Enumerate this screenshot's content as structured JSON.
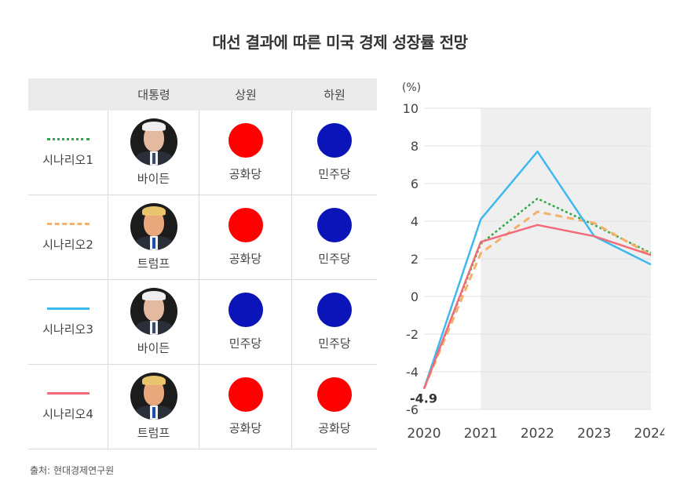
{
  "title": "대선 결과에 따른 미국 경제 성장률 전망",
  "table": {
    "headers": [
      "대통령",
      "상원",
      "하원"
    ],
    "rows": [
      {
        "scenario": "시나리오1",
        "line_style": "dotted",
        "line_color": "#2ea84a",
        "president": "바이든",
        "president_icon": "biden-portrait-icon",
        "senate": "공화당",
        "senate_color": "#ff0000",
        "house": "민주당",
        "house_color": "#0a14b8"
      },
      {
        "scenario": "시나리오2",
        "line_style": "dashed",
        "line_color": "#f5b06a",
        "president": "트럼프",
        "president_icon": "trump-portrait-icon",
        "senate": "공화당",
        "senate_color": "#ff0000",
        "house": "민주당",
        "house_color": "#0a14b8"
      },
      {
        "scenario": "시나리오3",
        "line_style": "solid",
        "line_color": "#3db9f0",
        "president": "바이든",
        "president_icon": "biden-portrait-icon",
        "senate": "민주당",
        "senate_color": "#0a14b8",
        "house": "민주당",
        "house_color": "#0a14b8"
      },
      {
        "scenario": "시나리오4",
        "line_style": "solid",
        "line_color": "#f26b7a",
        "president": "트럼프",
        "president_icon": "trump-portrait-icon",
        "senate": "공화당",
        "senate_color": "#ff0000",
        "house": "공화당",
        "house_color": "#ff0000"
      }
    ]
  },
  "source": "출처: 현대경제연구원",
  "chart_data": {
    "type": "line",
    "x": [
      2020,
      2021,
      2022,
      2023,
      2024
    ],
    "ylim": [
      -6,
      10
    ],
    "yticks": [
      -6,
      -4,
      -2,
      0,
      2,
      4,
      6,
      8,
      10
    ],
    "ylabel": "(%)",
    "grid": true,
    "shaded_from_x": 2021,
    "annotation": "-4.9",
    "series": [
      {
        "name": "시나리오1",
        "style": "dotted",
        "color": "#2ea84a",
        "values": [
          -4.9,
          2.8,
          5.2,
          3.8,
          2.3
        ]
      },
      {
        "name": "시나리오2",
        "style": "dashed",
        "color": "#f5b06a",
        "values": [
          -4.9,
          2.3,
          4.5,
          3.9,
          2.2
        ]
      },
      {
        "name": "시나리오3",
        "style": "solid",
        "color": "#3db9f0",
        "values": [
          -4.9,
          4.1,
          7.7,
          3.2,
          1.7
        ]
      },
      {
        "name": "시나리오4",
        "style": "solid",
        "color": "#f26b7a",
        "values": [
          -4.9,
          2.9,
          3.8,
          3.2,
          2.2
        ]
      }
    ]
  }
}
